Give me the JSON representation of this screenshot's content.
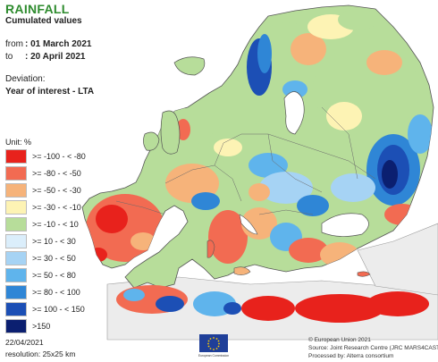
{
  "header": {
    "title": "RAINFALL",
    "subtitle": "Cumulated values",
    "from_label": "from",
    "from_value": ": 01 March 2021",
    "to_label": "to",
    "to_value": ": 20 April 2021",
    "deviation_label": "Deviation:",
    "deviation_value": "Year of interest - LTA"
  },
  "legend": {
    "unit": "Unit:  %",
    "classes": [
      {
        "label": ">= -100 - < -80",
        "color": "#e8221c"
      },
      {
        "label": ">= -80 - < -50",
        "color": "#f26b52"
      },
      {
        "label": ">= -50 - < -30",
        "color": "#f6b37a"
      },
      {
        "label": ">= -30 - < -10",
        "color": "#fdf3b4"
      },
      {
        "label": ">= -10 - < 10",
        "color": "#b7dd9a"
      },
      {
        "label": ">= 10 - < 30",
        "color": "#dbeefb"
      },
      {
        "label": ">= 30 - < 50",
        "color": "#a6d3f4"
      },
      {
        "label": ">= 50 - < 80",
        "color": "#5fb4ec"
      },
      {
        "label": ">= 80 - < 100",
        "color": "#2f86d6"
      },
      {
        "label": ">= 100 - < 150",
        "color": "#1c4fb5"
      },
      {
        "label": ">150",
        "color": "#0b1f70"
      }
    ]
  },
  "footer": {
    "date": "22/04/2021",
    "resolution": "resolution: 25x25 km",
    "logo_caption": "European Commission",
    "credit_1": "© European Union 2021",
    "credit_2": "Source: Joint Research Centre (JRC MARS4CAST)",
    "credit_3": "Processed by: Alterra consortium"
  },
  "colors": {
    "sea": "#ffffff",
    "border": "#555555",
    "non_europe": "#ececec",
    "title_green": "#2e8b2e",
    "eu_blue": "#1f3f99",
    "eu_yellow": "#ffcc00"
  }
}
